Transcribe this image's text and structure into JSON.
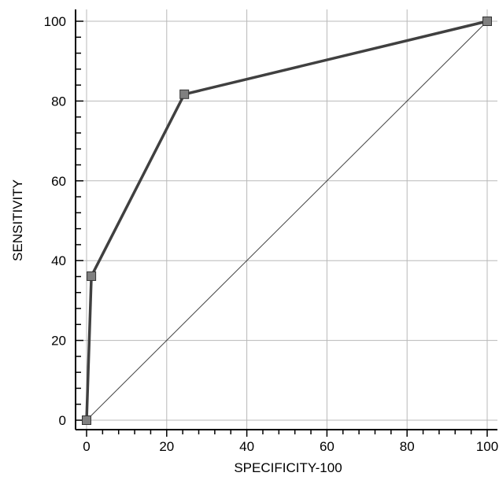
{
  "chart_data": {
    "type": "line",
    "title": "",
    "xlabel": "SPECIFICITY-100",
    "ylabel": "SENSITIVITY",
    "xlim": [
      0,
      100
    ],
    "ylim": [
      0,
      100
    ],
    "grid": true,
    "x_ticks": [
      "0",
      "20",
      "40",
      "60",
      "80",
      "100"
    ],
    "y_ticks": [
      "0",
      "20",
      "40",
      "60",
      "80",
      "100"
    ],
    "series": [
      {
        "x": [
          0,
          1.2,
          24.4,
          100
        ],
        "y": [
          0,
          36.1,
          81.7,
          100
        ],
        "marker": "square",
        "color": "#404040",
        "marker_color": "#808080"
      }
    ],
    "reference_line": {
      "x": [
        0,
        100
      ],
      "y": [
        0,
        100
      ],
      "color": "#404040"
    }
  }
}
